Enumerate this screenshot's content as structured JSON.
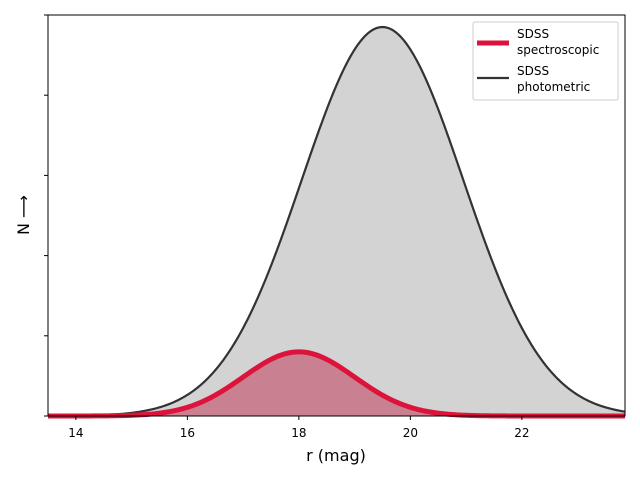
{
  "chart_data": {
    "type": "area",
    "xlabel": "r (mag)",
    "ylabel": "N ⟶",
    "xlim": [
      13.5,
      23.85
    ],
    "ylim": [
      0,
      1.0
    ],
    "grid": false,
    "legend_placement": "top-right",
    "x_ticks": [
      14,
      16,
      18,
      20,
      22
    ],
    "y_ticks": [
      0,
      0.2,
      0.4,
      0.6,
      0.8,
      1.0
    ],
    "series": [
      {
        "name": "SDSS spectroscopic",
        "name_lines": [
          "SDSS",
          "spectroscopic"
        ],
        "color": "#dc143c",
        "fill_color": "#c98090",
        "peak_x": 18.0,
        "peak_y": 0.16,
        "sigma": 1.0
      },
      {
        "name": "SDSS photometric",
        "name_lines": [
          "SDSS",
          "photometric"
        ],
        "color": "#333333",
        "fill_color": "#d3d3d3",
        "peak_x": 19.5,
        "peak_y": 0.97,
        "sigma": 1.45
      }
    ]
  }
}
